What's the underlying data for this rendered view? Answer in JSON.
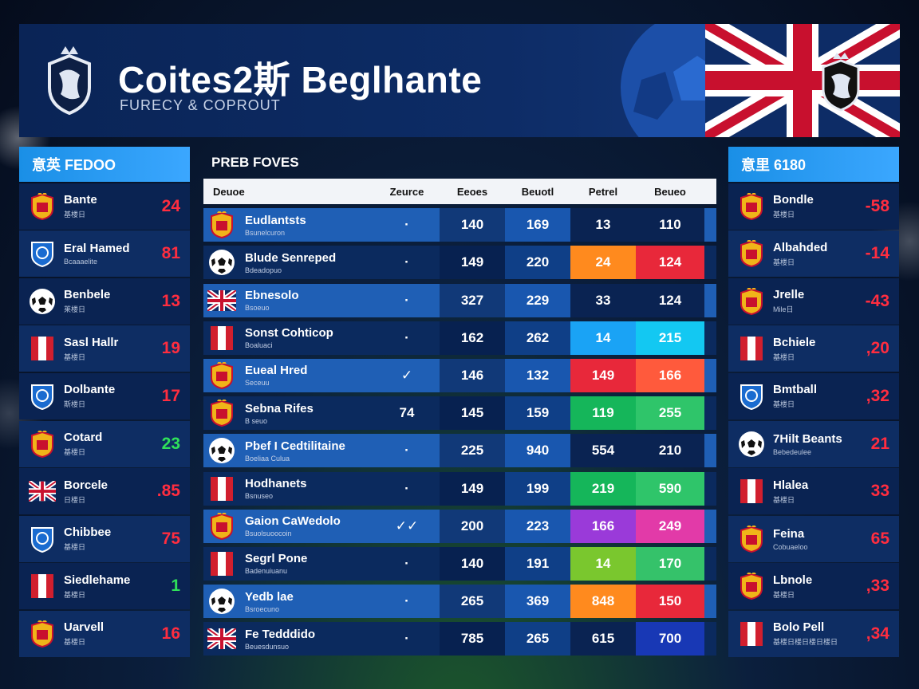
{
  "header": {
    "title": "Coites2斯 Beglhante",
    "subtitle": "FURECY & COPROUT"
  },
  "left_panel": {
    "title": "意英 FEDOO",
    "rows": [
      {
        "name": "Bante",
        "sub": "基楼日",
        "score": "24",
        "badge": "crest-icon"
      },
      {
        "name": "Eral Hamed",
        "sub": "Bcaaaelite",
        "score": "81",
        "badge": "shield-icon"
      },
      {
        "name": "Benbele",
        "sub": "莱楼日",
        "score": "13",
        "badge": "soccer-ball-icon"
      },
      {
        "name": "Sasl Hallr",
        "sub": "基楼日",
        "score": "19",
        "badge": "flag-icon"
      },
      {
        "name": "Dolbante",
        "sub": "斯楼日",
        "score": "17",
        "badge": "shield-icon"
      },
      {
        "name": "Cotard",
        "sub": "基楼日",
        "score": "23",
        "badge": "crest-icon"
      },
      {
        "name": "Borcele",
        "sub": "日楼日",
        "score": ".85",
        "badge": "uk-flag-icon"
      },
      {
        "name": "Chibbee",
        "sub": "基楼日",
        "score": "75",
        "badge": "shield-icon"
      },
      {
        "name": "Siedlehame",
        "sub": "基楼日",
        "score": "1",
        "badge": "flag-icon"
      },
      {
        "name": "Uarvell",
        "sub": "基楼日",
        "score": "16",
        "badge": "crest-icon"
      }
    ]
  },
  "center_panel": {
    "title": "PREB FOVES",
    "columns": [
      "Deuoe",
      "Zeurce",
      "Eeoes",
      "Beuotl",
      "Petrel",
      "Beueo"
    ],
    "rows": [
      {
        "name": "Eudlantsts",
        "sub": "Bsunelcuron",
        "c1": "·",
        "c2": "140",
        "c3": "169",
        "c4": "13",
        "c5": "110",
        "badge": "crest-icon"
      },
      {
        "name": "Blude Senreped",
        "sub": "Bdeadopuo",
        "c1": "·",
        "c2": "149",
        "c3": "220",
        "c4": "24",
        "c5": "124",
        "badge": "soccer-ball-icon"
      },
      {
        "name": "Ebnesolo",
        "sub": "Bsoeuo",
        "c1": "·",
        "c2": "327",
        "c3": "229",
        "c4": "33",
        "c5": "124",
        "badge": "uk-flag-icon"
      },
      {
        "name": "Sonst Cohticop",
        "sub": "Boaluaci",
        "c1": "·",
        "c2": "162",
        "c3": "262",
        "c4": "14",
        "c5": "215",
        "badge": "flag-icon"
      },
      {
        "name": "Eueal Hred",
        "sub": "Seceuu",
        "c1": "✓",
        "c2": "146",
        "c3": "132",
        "c4": "149",
        "c5": "166",
        "badge": "crest-icon"
      },
      {
        "name": "Sebna Rifes",
        "sub": "B seuo",
        "c1": "74",
        "c2": "145",
        "c3": "159",
        "c4": "119",
        "c5": "255",
        "badge": "crest-icon"
      },
      {
        "name": "Pbef I Cedtilitaine",
        "sub": "Boeliaa Culua",
        "c1": "·",
        "c2": "225",
        "c3": "940",
        "c4": "554",
        "c5": "210",
        "badge": "soccer-ball-icon"
      },
      {
        "name": "Hodhanets",
        "sub": "Bsnuseo",
        "c1": "·",
        "c2": "149",
        "c3": "199",
        "c4": "219",
        "c5": "590",
        "badge": "flag-icon"
      },
      {
        "name": "Gaion CaWedolo",
        "sub": "Bsuolsuoocoin",
        "c1": "✓✓",
        "c2": "200",
        "c3": "223",
        "c4": "166",
        "c5": "249",
        "badge": "crest-icon"
      },
      {
        "name": "Segrl Pone",
        "sub": "Badenuiuanu",
        "c1": "·",
        "c2": "140",
        "c3": "191",
        "c4": "14",
        "c5": "170",
        "badge": "flag-icon"
      },
      {
        "name": "Yedb lae",
        "sub": "Bsroecuno",
        "c1": "·",
        "c2": "265",
        "c3": "369",
        "c4": "848",
        "c5": "150",
        "badge": "soccer-ball-icon"
      },
      {
        "name": "Fe Tedddido",
        "sub": "Beuesdunsuo",
        "c1": "·",
        "c2": "785",
        "c3": "265",
        "c4": "615",
        "c5": "700",
        "badge": "uk-flag-icon"
      }
    ]
  },
  "right_panel": {
    "title": "意里 6180",
    "rows": [
      {
        "name": "Bondle",
        "sub": "基楼日",
        "score": "-58",
        "badge": "crest-icon"
      },
      {
        "name": "Albahded",
        "sub": "基楼日",
        "score": "-14",
        "badge": "crest-icon"
      },
      {
        "name": "Jrelle",
        "sub": "Mile日",
        "score": "-43",
        "badge": "crest-icon"
      },
      {
        "name": "Bchiele",
        "sub": "基楼日",
        "score": ",20",
        "badge": "flag-icon"
      },
      {
        "name": "Bmtball",
        "sub": "基楼日",
        "score": ",32",
        "badge": "shield-icon"
      },
      {
        "name": "7Hilt Beants",
        "sub": "Bebedeulee",
        "score": "21",
        "badge": "soccer-ball-icon"
      },
      {
        "name": "Hlalea",
        "sub": "基楼日",
        "score": "33",
        "badge": "flag-icon"
      },
      {
        "name": "Feina",
        "sub": "Cobuaeloo",
        "score": "65",
        "badge": "crest-icon"
      },
      {
        "name": "Lbnole",
        "sub": "基楼日",
        "score": ",33",
        "badge": "crest-icon"
      },
      {
        "name": "Bolo Pell",
        "sub": "基楼日楼日楼日楼日",
        "score": ",34",
        "badge": "flag-icon"
      }
    ]
  },
  "colors": {
    "accent_blue": "#1a8fe6",
    "score_red": "#ff2d3f",
    "score_green": "#2fe05a"
  }
}
